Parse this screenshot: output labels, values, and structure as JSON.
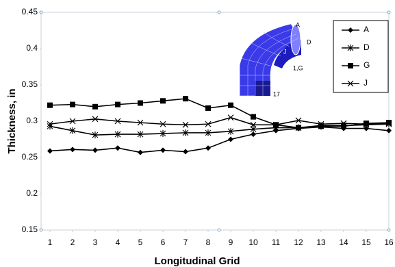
{
  "chart_data": {
    "type": "line",
    "x_label": "Longitudinal Grid",
    "y_label": "Thickness, in",
    "x": [
      1,
      2,
      3,
      4,
      5,
      6,
      7,
      8,
      9,
      10,
      11,
      12,
      13,
      14,
      15,
      16
    ],
    "xlim": [
      1,
      16
    ],
    "xticks": [
      1,
      2,
      3,
      4,
      5,
      6,
      7,
      8,
      9,
      10,
      11,
      12,
      13,
      14,
      15,
      16
    ],
    "ylim": [
      0.15,
      0.45
    ],
    "yticks": [
      0.15,
      0.2,
      0.25,
      0.3,
      0.35,
      0.4,
      0.45
    ],
    "grid": false,
    "legend": "upper right",
    "series": [
      {
        "name": "A",
        "color": "#000000",
        "marker": "diamond",
        "values": [
          0.259,
          0.261,
          0.26,
          0.263,
          0.257,
          0.26,
          0.258,
          0.263,
          0.275,
          0.282,
          0.287,
          0.29,
          0.292,
          0.29,
          0.29,
          0.287
        ]
      },
      {
        "name": "D",
        "color": "#000000",
        "marker": "asterisk",
        "values": [
          0.293,
          0.287,
          0.281,
          0.282,
          0.282,
          0.283,
          0.284,
          0.284,
          0.286,
          0.289,
          0.291,
          0.291,
          0.294,
          0.294,
          0.295,
          0.296
        ]
      },
      {
        "name": "G",
        "color": "#000000",
        "marker": "square",
        "values": [
          0.322,
          0.323,
          0.32,
          0.323,
          0.325,
          0.328,
          0.331,
          0.318,
          0.322,
          0.306,
          0.295,
          0.291,
          0.293,
          0.293,
          0.297,
          0.298
        ]
      },
      {
        "name": "J",
        "color": "#000000",
        "marker": "x",
        "values": [
          0.296,
          0.3,
          0.303,
          0.3,
          0.298,
          0.296,
          0.295,
          0.296,
          0.305,
          0.295,
          0.295,
          0.301,
          0.296,
          0.297,
          0.296,
          0.297
        ]
      }
    ],
    "inset_labels": [
      "A",
      "D",
      "J",
      "1,G",
      "17"
    ]
  }
}
